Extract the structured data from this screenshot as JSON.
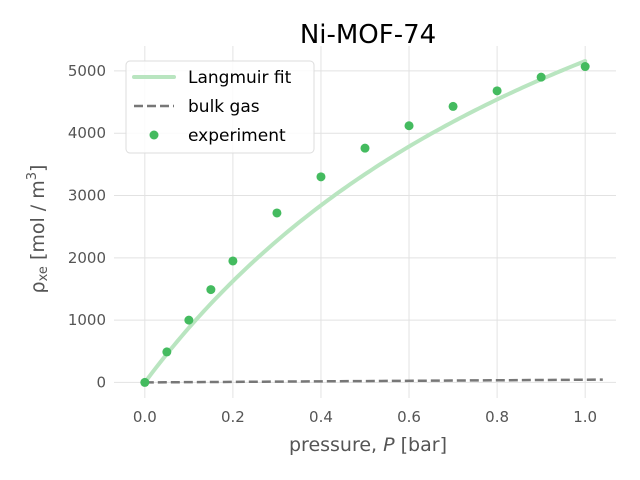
{
  "chart_data": {
    "type": "line",
    "title": "Ni-MOF-74",
    "xlabel_prefix": "pressure, ",
    "xlabel_var": "P",
    "xlabel_suffix": " [bar]",
    "ylabel_main": "ρ",
    "ylabel_sub": "xe",
    "ylabel_unit": " [mol / m",
    "ylabel_sup": "3",
    "ylabel_close": "]",
    "xlim": [
      -0.07,
      1.07
    ],
    "ylim": [
      -250,
      5400
    ],
    "xticks": [
      0.0,
      0.2,
      0.4,
      0.6,
      0.8,
      1.0
    ],
    "xtick_labels": [
      "0.0",
      "0.2",
      "0.4",
      "0.6",
      "0.8",
      "1.0"
    ],
    "yticks": [
      0,
      1000,
      2000,
      3000,
      4000,
      5000
    ],
    "ytick_labels": [
      "0",
      "1000",
      "2000",
      "3000",
      "4000",
      "5000"
    ],
    "grid": true,
    "legend_position": "top-left",
    "series": [
      {
        "name": "Langmuir fit",
        "kind": "line",
        "color": "#b9e5c0",
        "model": "langmuir",
        "params": {
          "M": 11300,
          "K": 0.84
        },
        "x_range": [
          0.0,
          1.0
        ]
      },
      {
        "name": "bulk gas",
        "kind": "dashed-line",
        "color": "#777777",
        "x": [
          0.0,
          1.04
        ],
        "y": [
          0,
          45
        ]
      },
      {
        "name": "experiment",
        "kind": "scatter",
        "color": "#44bb5f",
        "x": [
          0.0,
          0.05,
          0.1,
          0.15,
          0.2,
          0.3,
          0.4,
          0.5,
          0.6,
          0.7,
          0.8,
          0.9,
          1.0
        ],
        "y": [
          0,
          490,
          1000,
          1490,
          1950,
          2720,
          3300,
          3760,
          4120,
          4430,
          4680,
          4900,
          5070
        ]
      }
    ]
  }
}
